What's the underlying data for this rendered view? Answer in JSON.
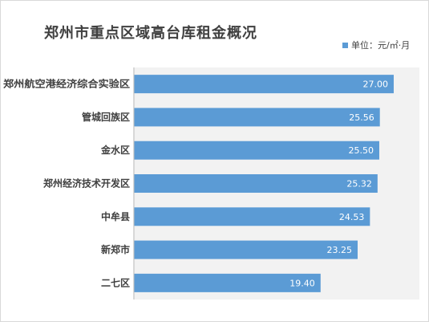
{
  "chart_data": {
    "type": "bar",
    "orientation": "horizontal",
    "title": "郑州市重点区域高台库租金概况",
    "legend": {
      "position": "top-right",
      "label": "单位：元/㎡·月"
    },
    "categories": [
      "郑州航空港经济综合实验区",
      "管城回族区",
      "金水区",
      "郑州经济技术开发区",
      "中牟县",
      "新郑市",
      "二七区"
    ],
    "series": [
      {
        "name": "单位：元/㎡·月",
        "values": [
          27.0,
          25.56,
          25.5,
          25.32,
          24.53,
          23.25,
          19.4
        ]
      }
    ],
    "value_labels": [
      "27.00",
      "25.56",
      "25.50",
      "25.32",
      "24.53",
      "23.25",
      "19.40"
    ],
    "xlim": [
      0,
      30
    ],
    "colors": {
      "bar": "#5b9bd5",
      "plot_bg": "#f2f2f2"
    },
    "grid": false
  }
}
